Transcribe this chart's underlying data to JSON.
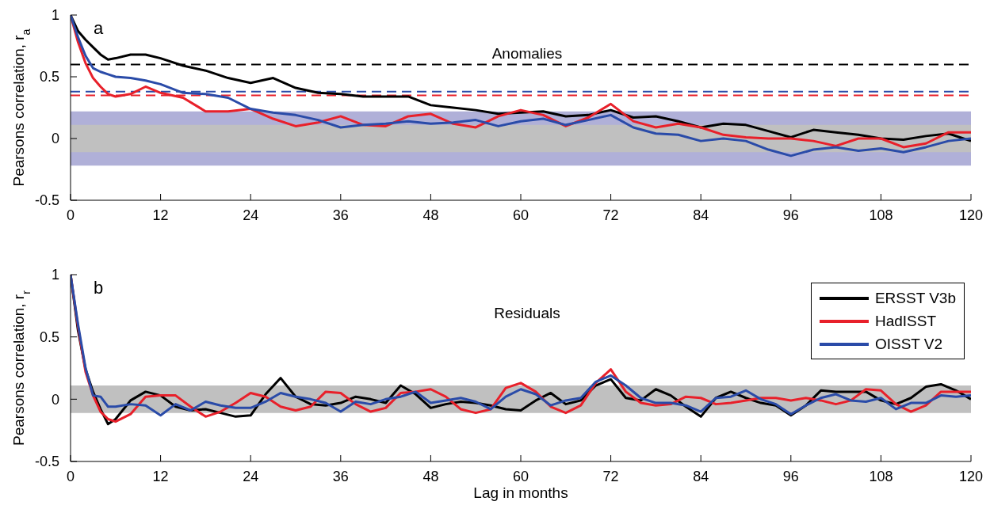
{
  "chart_data": [
    {
      "type": "line",
      "title": "Anomalies",
      "ylabel": "Pearsons correlation, r$_{a}$",
      "annotations": [
        "a"
      ],
      "marker": "none",
      "grid": false,
      "legend": false,
      "x": [
        0,
        1,
        2,
        3,
        4,
        5,
        6,
        8,
        10,
        12,
        15,
        18,
        21,
        24,
        27,
        30,
        33,
        36,
        39,
        42,
        45,
        48,
        51,
        54,
        57,
        60,
        63,
        66,
        69,
        72,
        75,
        78,
        81,
        84,
        87,
        90,
        93,
        96,
        99,
        102,
        105,
        108,
        111,
        114,
        117,
        120
      ],
      "xlim": [
        0,
        120
      ],
      "xticks": [
        0,
        12,
        24,
        36,
        48,
        60,
        72,
        84,
        96,
        108,
        120
      ],
      "ylim": [
        -0.5,
        1
      ],
      "yticks": [
        -0.5,
        0,
        0.5,
        1
      ],
      "series": [
        {
          "color": "#000000",
          "values": [
            1,
            0.87,
            0.8,
            0.74,
            0.68,
            0.64,
            0.65,
            0.68,
            0.68,
            0.65,
            0.59,
            0.55,
            0.49,
            0.45,
            0.49,
            0.41,
            0.37,
            0.36,
            0.34,
            0.34,
            0.34,
            0.27,
            0.25,
            0.23,
            0.2,
            0.21,
            0.22,
            0.18,
            0.19,
            0.23,
            0.17,
            0.18,
            0.14,
            0.09,
            0.12,
            0.11,
            0.06,
            0.01,
            0.07,
            0.05,
            0.03,
            0,
            -0.01,
            0.02,
            0.04,
            -0.02
          ]
        },
        {
          "color": "#e8202a",
          "values": [
            1,
            0.78,
            0.61,
            0.49,
            0.42,
            0.36,
            0.34,
            0.36,
            0.42,
            0.37,
            0.33,
            0.22,
            0.22,
            0.24,
            0.16,
            0.1,
            0.13,
            0.18,
            0.11,
            0.1,
            0.18,
            0.2,
            0.12,
            0.09,
            0.18,
            0.23,
            0.19,
            0.1,
            0.17,
            0.28,
            0.14,
            0.09,
            0.12,
            0.09,
            0.03,
            0.01,
            0,
            0,
            -0.02,
            -0.06,
            0,
            0,
            -0.07,
            -0.04,
            0.05,
            0.05
          ]
        },
        {
          "color": "#2a4ba8",
          "values": [
            1,
            0.82,
            0.67,
            0.57,
            0.54,
            0.52,
            0.5,
            0.49,
            0.47,
            0.44,
            0.37,
            0.36,
            0.33,
            0.24,
            0.21,
            0.19,
            0.15,
            0.09,
            0.11,
            0.12,
            0.14,
            0.12,
            0.13,
            0.15,
            0.1,
            0.14,
            0.16,
            0.11,
            0.15,
            0.19,
            0.09,
            0.04,
            0.03,
            -0.02,
            0,
            -0.02,
            -0.09,
            -0.14,
            -0.09,
            -0.07,
            -0.1,
            -0.08,
            -0.11,
            -0.07,
            -0.02,
            0
          ]
        }
      ],
      "ref_lines": [
        {
          "axis": "y",
          "value": 0.6,
          "color": "#000000",
          "line_style": "dashed"
        },
        {
          "axis": "y",
          "value": 0.38,
          "color": "#2a4ba8",
          "line_style": "dashed"
        },
        {
          "axis": "y",
          "value": 0.35,
          "color": "#e8202a",
          "line_style": "dashed"
        }
      ],
      "bands": [
        {
          "axis": "y",
          "from": -0.22,
          "to": 0.22,
          "color": "#b0b0d8"
        },
        {
          "axis": "y",
          "from": -0.11,
          "to": 0.11,
          "color": "#c0c0c0"
        }
      ]
    },
    {
      "type": "line",
      "title": "Residuals",
      "xlabel": "Lag in months",
      "ylabel": "Pearsons correlation, r$_{r}$",
      "annotations": [
        "b"
      ],
      "marker": "none",
      "grid": false,
      "legend": "top right",
      "x": [
        0,
        1,
        2,
        3,
        4,
        5,
        6,
        8,
        10,
        12,
        14,
        16,
        18,
        20,
        22,
        24,
        26,
        28,
        30,
        32,
        34,
        36,
        38,
        40,
        42,
        44,
        46,
        48,
        50,
        52,
        54,
        56,
        58,
        60,
        62,
        64,
        66,
        68,
        70,
        72,
        74,
        76,
        78,
        80,
        82,
        84,
        86,
        88,
        90,
        92,
        94,
        96,
        98,
        100,
        102,
        104,
        106,
        108,
        110,
        112,
        114,
        116,
        118,
        120
      ],
      "xlim": [
        0,
        120
      ],
      "xticks": [
        0,
        12,
        24,
        36,
        48,
        60,
        72,
        84,
        96,
        108,
        120
      ],
      "ylim": [
        -0.5,
        1
      ],
      "yticks": [
        -0.5,
        0,
        0.5,
        1
      ],
      "series": [
        {
          "name": "ERSST V3b",
          "color": "#000000",
          "values": [
            1,
            0.55,
            0.24,
            0.06,
            -0.08,
            -0.2,
            -0.16,
            -0.01,
            0.06,
            0.03,
            -0.06,
            -0.09,
            -0.08,
            -0.11,
            -0.14,
            -0.13,
            0.04,
            0.17,
            0.02,
            -0.04,
            -0.05,
            -0.03,
            0.02,
            0,
            -0.03,
            0.11,
            0.04,
            -0.07,
            -0.04,
            -0.02,
            -0.03,
            -0.05,
            -0.08,
            -0.09,
            -0.01,
            0.05,
            -0.04,
            -0.01,
            0.11,
            0.16,
            0.01,
            -0.01,
            0.08,
            0.03,
            -0.06,
            -0.14,
            0.01,
            0.06,
            0.01,
            -0.03,
            -0.05,
            -0.13,
            -0.05,
            0.07,
            0.06,
            0.06,
            0.06,
            -0.01,
            -0.04,
            0.01,
            0.1,
            0.12,
            0.07,
            0
          ]
        },
        {
          "name": "HadISST",
          "color": "#e8202a",
          "values": [
            1,
            0.58,
            0.22,
            0.03,
            -0.1,
            -0.16,
            -0.18,
            -0.12,
            0.02,
            0.03,
            0.03,
            -0.06,
            -0.14,
            -0.1,
            -0.03,
            0.05,
            0.02,
            -0.06,
            -0.09,
            -0.06,
            0.06,
            0.05,
            -0.04,
            -0.1,
            -0.07,
            0.05,
            0.06,
            0.08,
            0.02,
            -0.08,
            -0.11,
            -0.08,
            0.09,
            0.13,
            0.06,
            -0.06,
            -0.11,
            -0.05,
            0.13,
            0.24,
            0.06,
            -0.03,
            -0.05,
            -0.04,
            0.02,
            0.01,
            -0.04,
            -0.03,
            -0.01,
            0.01,
            0.01,
            -0.01,
            0.01,
            -0.01,
            -0.04,
            -0.01,
            0.08,
            0.07,
            -0.04,
            -0.1,
            -0.05,
            0.06,
            0.06,
            0.06
          ]
        },
        {
          "name": "OISST V2",
          "color": "#2a4ba8",
          "values": [
            1,
            0.6,
            0.25,
            0.03,
            0.02,
            -0.06,
            -0.06,
            -0.04,
            -0.05,
            -0.13,
            -0.04,
            -0.09,
            -0.02,
            -0.05,
            -0.07,
            -0.07,
            -0.02,
            0.05,
            0.02,
            0,
            -0.03,
            -0.1,
            -0.02,
            -0.04,
            0,
            0.02,
            0.06,
            -0.03,
            -0.01,
            0.01,
            -0.02,
            -0.08,
            0.02,
            0.08,
            0.04,
            -0.05,
            -0.01,
            0.01,
            0.14,
            0.19,
            0.11,
            0.01,
            -0.03,
            -0.03,
            -0.05,
            -0.1,
            0.01,
            0.02,
            0.07,
            0,
            -0.04,
            -0.12,
            -0.05,
            0.01,
            0.04,
            -0.01,
            -0.02,
            0.01,
            -0.08,
            -0.03,
            -0.03,
            0.03,
            0.02,
            0.03
          ]
        }
      ],
      "bands": [
        {
          "axis": "y",
          "from": -0.11,
          "to": 0.11,
          "color": "#c0c0c0"
        }
      ]
    }
  ]
}
